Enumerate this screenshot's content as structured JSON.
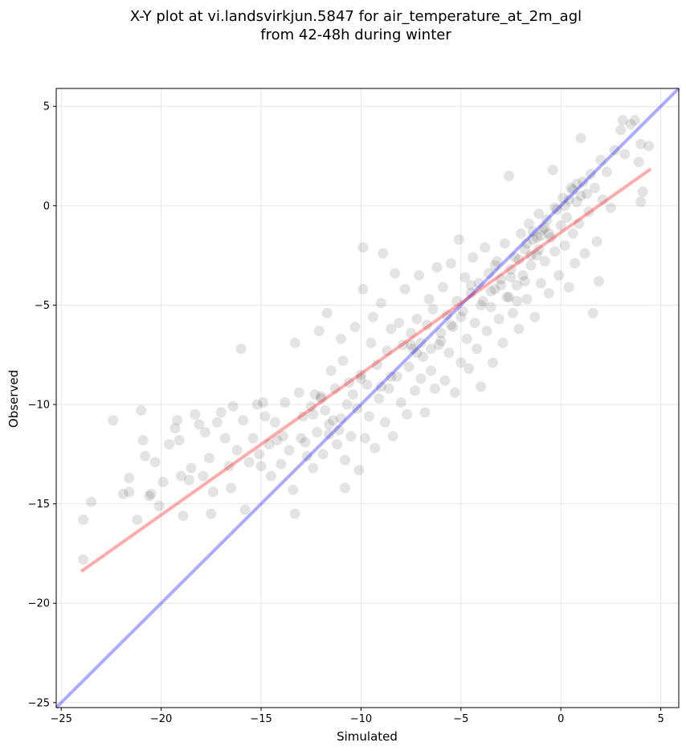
{
  "chart_data": {
    "type": "scatter",
    "title_line1": "X-Y plot at vi.landsvirkjun.5847 for air_temperature_at_2m_agl",
    "title_line2": "from 42-48h during winter",
    "xlabel": "Simulated",
    "ylabel": "Observed",
    "xlim": [
      -25.25,
      5.9
    ],
    "ylim": [
      -25.25,
      5.9
    ],
    "xticks": [
      -25,
      -20,
      -15,
      -10,
      -5,
      0,
      5
    ],
    "yticks": [
      -25,
      -20,
      -15,
      -10,
      -5,
      0,
      5
    ],
    "xtick_labels": [
      "−25",
      "−20",
      "−15",
      "−10",
      "−5",
      "0",
      "5"
    ],
    "ytick_labels": [
      "−25",
      "−20",
      "−15",
      "−10",
      "−5",
      "0",
      "5"
    ],
    "grid": true,
    "point_color": "#000000",
    "point_alpha": 0.11,
    "identity_line": {
      "x": [
        -25.25,
        5.9
      ],
      "y": [
        -25.25,
        5.9
      ],
      "color": "#0000ff"
    },
    "regression_line": {
      "x": [
        -24,
        4.5
      ],
      "y": [
        -18.4,
        1.85
      ],
      "color": "#ff0000"
    },
    "points": [
      [
        -23.9,
        -15.8
      ],
      [
        -23.9,
        -17.8
      ],
      [
        -23.5,
        -14.9
      ],
      [
        -22.4,
        -10.8
      ],
      [
        -21.9,
        -14.5
      ],
      [
        -21.6,
        -13.7
      ],
      [
        -21.6,
        -14.4
      ],
      [
        -21.2,
        -15.8
      ],
      [
        -21.0,
        -10.3
      ],
      [
        -20.9,
        -11.8
      ],
      [
        -20.8,
        -12.6
      ],
      [
        -20.6,
        -14.6
      ],
      [
        -20.5,
        -14.5
      ],
      [
        -20.3,
        -12.9
      ],
      [
        -20.1,
        -15.1
      ],
      [
        -19.9,
        -13.9
      ],
      [
        -19.6,
        -12.0
      ],
      [
        -19.3,
        -11.2
      ],
      [
        -19.2,
        -10.8
      ],
      [
        -19.1,
        -11.8
      ],
      [
        -19.0,
        -13.6
      ],
      [
        -18.9,
        -15.6
      ],
      [
        -18.6,
        -13.8
      ],
      [
        -18.5,
        -13.2
      ],
      [
        -18.3,
        -10.5
      ],
      [
        -18.1,
        -11.0
      ],
      [
        -17.9,
        -13.6
      ],
      [
        -17.8,
        -11.4
      ],
      [
        -17.6,
        -12.7
      ],
      [
        -17.5,
        -15.5
      ],
      [
        -17.4,
        -14.4
      ],
      [
        -17.2,
        -10.9
      ],
      [
        -17.0,
        -10.4
      ],
      [
        -16.8,
        -11.7
      ],
      [
        -16.6,
        -13.1
      ],
      [
        -16.5,
        -14.2
      ],
      [
        -16.4,
        -10.1
      ],
      [
        -16.2,
        -12.3
      ],
      [
        -16.0,
        -7.2
      ],
      [
        -15.9,
        -10.8
      ],
      [
        -15.8,
        -15.3
      ],
      [
        -15.6,
        -12.9
      ],
      [
        -15.4,
        -11.7
      ],
      [
        -15.2,
        -10.0
      ],
      [
        -15.1,
        -12.5
      ],
      [
        -15.0,
        -13.1
      ],
      [
        -14.9,
        -9.9
      ],
      [
        -14.8,
        -10.6
      ],
      [
        -14.6,
        -12.0
      ],
      [
        -14.5,
        -13.6
      ],
      [
        -14.3,
        -10.9
      ],
      [
        -14.2,
        -11.8
      ],
      [
        -14.0,
        -13.0
      ],
      [
        -13.9,
        -11.6
      ],
      [
        -13.8,
        -9.9
      ],
      [
        -13.6,
        -12.3
      ],
      [
        -13.4,
        -14.3
      ],
      [
        -13.3,
        -15.5
      ],
      [
        -13.3,
        -6.9
      ],
      [
        -13.1,
        -9.4
      ],
      [
        -13.0,
        -11.7
      ],
      [
        -12.9,
        -10.6
      ],
      [
        -12.8,
        -11.9
      ],
      [
        -12.7,
        -12.6
      ],
      [
        -12.5,
        -10.1
      ],
      [
        -12.4,
        -13.2
      ],
      [
        -12.3,
        -9.5
      ],
      [
        -12.2,
        -11.4
      ],
      [
        -12.1,
        -6.3
      ],
      [
        -12.0,
        -9.7
      ],
      [
        -11.9,
        -12.5
      ],
      [
        -11.8,
        -10.3
      ],
      [
        -11.7,
        -5.4
      ],
      [
        -11.6,
        -11.0
      ],
      [
        -11.5,
        -8.3
      ],
      [
        -11.4,
        -10.8
      ],
      [
        -11.3,
        -9.2
      ],
      [
        -11.2,
        -12.0
      ],
      [
        -11.1,
        -11.3
      ],
      [
        -11.0,
        -6.7
      ],
      [
        -10.9,
        -7.8
      ],
      [
        -10.8,
        -12.8
      ],
      [
        -10.8,
        -14.2
      ],
      [
        -10.7,
        -10.0
      ],
      [
        -10.6,
        -8.9
      ],
      [
        -10.5,
        -11.6
      ],
      [
        -10.4,
        -9.5
      ],
      [
        -10.3,
        -6.1
      ],
      [
        -10.2,
        -10.2
      ],
      [
        -10.1,
        -13.3
      ],
      [
        -10.0,
        -8.5
      ],
      [
        -9.9,
        -4.2
      ],
      [
        -9.9,
        -2.1
      ],
      [
        -9.8,
        -11.7
      ],
      [
        -9.7,
        -9.0
      ],
      [
        -9.6,
        -10.6
      ],
      [
        -9.5,
        -6.9
      ],
      [
        -9.4,
        -5.6
      ],
      [
        -9.3,
        -12.2
      ],
      [
        -9.2,
        -8.0
      ],
      [
        -9.1,
        -9.7
      ],
      [
        -9.0,
        -4.9
      ],
      [
        -8.9,
        -2.4
      ],
      [
        -8.8,
        -10.9
      ],
      [
        -8.7,
        -7.3
      ],
      [
        -8.6,
        -9.2
      ],
      [
        -8.5,
        -6.2
      ],
      [
        -8.4,
        -11.6
      ],
      [
        -8.3,
        -3.4
      ],
      [
        -8.2,
        -8.6
      ],
      [
        -8.1,
        -5.9
      ],
      [
        -8.0,
        -9.9
      ],
      [
        -7.9,
        -7.0
      ],
      [
        -7.8,
        -4.2
      ],
      [
        -7.7,
        -10.5
      ],
      [
        -7.6,
        -8.1
      ],
      [
        -7.5,
        -6.4
      ],
      [
        -7.4,
        -7.2
      ],
      [
        -7.3,
        -9.3
      ],
      [
        -7.2,
        -5.7
      ],
      [
        -7.1,
        -3.5
      ],
      [
        -7.0,
        -8.7
      ],
      [
        -6.9,
        -7.6
      ],
      [
        -6.8,
        -10.4
      ],
      [
        -6.7,
        -6.0
      ],
      [
        -6.6,
        -4.7
      ],
      [
        -6.5,
        -8.3
      ],
      [
        -6.4,
        -5.2
      ],
      [
        -6.3,
        -9.2
      ],
      [
        -6.2,
        -3.1
      ],
      [
        -6.1,
        -7.0
      ],
      [
        -6.0,
        -6.4
      ],
      [
        -5.9,
        -4.1
      ],
      [
        -5.8,
        -8.8
      ],
      [
        -5.7,
        -5.5
      ],
      [
        -5.6,
        -7.4
      ],
      [
        -5.5,
        -2.9
      ],
      [
        -5.4,
        -6.1
      ],
      [
        -5.3,
        -9.4
      ],
      [
        -5.2,
        -4.8
      ],
      [
        -5.1,
        -1.7
      ],
      [
        -5.0,
        -7.9
      ],
      [
        -4.9,
        -5.3
      ],
      [
        -4.8,
        -3.6
      ],
      [
        -4.7,
        -6.7
      ],
      [
        -4.6,
        -8.2
      ],
      [
        -4.5,
        -4.4
      ],
      [
        -4.4,
        -2.6
      ],
      [
        -4.3,
        -5.9
      ],
      [
        -4.2,
        -7.2
      ],
      [
        -4.1,
        -3.9
      ],
      [
        -4.0,
        -9.1
      ],
      [
        -3.9,
        -4.8
      ],
      [
        -3.8,
        -2.1
      ],
      [
        -3.7,
        -6.3
      ],
      [
        -3.6,
        -3.4
      ],
      [
        -3.5,
        -5.1
      ],
      [
        -3.4,
        -7.9
      ],
      [
        -3.3,
        -4.2
      ],
      [
        -3.2,
        -2.8
      ],
      [
        -3.1,
        -5.7
      ],
      [
        -3.0,
        -3.7
      ],
      [
        -2.9,
        -6.9
      ],
      [
        -2.8,
        -1.9
      ],
      [
        -2.7,
        -4.6
      ],
      [
        -2.6,
        1.5
      ],
      [
        -2.5,
        -3.2
      ],
      [
        -2.4,
        -5.4
      ],
      [
        -2.3,
        -2.6
      ],
      [
        -2.2,
        -4.0
      ],
      [
        -2.1,
        -6.2
      ],
      [
        -2.0,
        -1.4
      ],
      [
        -1.9,
        -3.5
      ],
      [
        -1.8,
        -2.2
      ],
      [
        -1.7,
        -4.7
      ],
      [
        -1.6,
        -0.9
      ],
      [
        -1.5,
        -3.0
      ],
      [
        -1.4,
        -1.7
      ],
      [
        -1.3,
        -5.6
      ],
      [
        -1.2,
        -2.5
      ],
      [
        -1.1,
        -0.4
      ],
      [
        -1.0,
        -3.9
      ],
      [
        -0.9,
        -1.2
      ],
      [
        -0.8,
        -2.8
      ],
      [
        -0.7,
        -0.7
      ],
      [
        -0.6,
        -4.4
      ],
      [
        -0.5,
        -1.6
      ],
      [
        -0.4,
        1.8
      ],
      [
        -0.3,
        -2.3
      ],
      [
        -0.2,
        -0.2
      ],
      [
        -0.1,
        -3.5
      ],
      [
        0.0,
        -1.0
      ],
      [
        0.1,
        0.4
      ],
      [
        0.2,
        -2.0
      ],
      [
        0.3,
        -0.6
      ],
      [
        0.4,
        -4.1
      ],
      [
        0.5,
        0.9
      ],
      [
        0.6,
        -1.4
      ],
      [
        0.7,
        -2.9
      ],
      [
        0.8,
        0.2
      ],
      [
        0.9,
        -0.9
      ],
      [
        1.0,
        3.4
      ],
      [
        1.1,
        1.2
      ],
      [
        1.2,
        -2.4
      ],
      [
        1.3,
        0.6
      ],
      [
        1.4,
        -0.3
      ],
      [
        1.5,
        1.6
      ],
      [
        1.6,
        -5.4
      ],
      [
        1.7,
        0.9
      ],
      [
        1.8,
        -1.8
      ],
      [
        1.9,
        -3.8
      ],
      [
        2.0,
        2.3
      ],
      [
        2.1,
        0.3
      ],
      [
        2.3,
        1.7
      ],
      [
        2.5,
        -0.1
      ],
      [
        2.7,
        2.8
      ],
      [
        3.0,
        3.8
      ],
      [
        3.1,
        4.3
      ],
      [
        3.2,
        2.6
      ],
      [
        3.5,
        4.1
      ],
      [
        3.7,
        4.3
      ],
      [
        3.9,
        2.2
      ],
      [
        4.0,
        3.1
      ],
      [
        4.0,
        0.2
      ],
      [
        4.1,
        0.7
      ],
      [
        4.4,
        3.0
      ],
      [
        -1.4,
        -1.3
      ],
      [
        -1.0,
        -1.5
      ],
      [
        -0.8,
        -1.1
      ],
      [
        -1.7,
        -1.9
      ],
      [
        -2.1,
        -2.7
      ],
      [
        -1.2,
        -1.6
      ],
      [
        0.6,
        0.8
      ],
      [
        0.8,
        1.1
      ],
      [
        1.0,
        0.5
      ],
      [
        0.4,
        0.3
      ],
      [
        -0.3,
        -0.1
      ],
      [
        -2.5,
        -3.6
      ],
      [
        -3.0,
        -4.0
      ],
      [
        -3.5,
        -4.3
      ],
      [
        -7.5,
        -7.0
      ],
      [
        -7.2,
        -7.4
      ],
      [
        -7.0,
        -6.9
      ],
      [
        -8.5,
        -8.6
      ],
      [
        -9.0,
        -9.1
      ],
      [
        -10.0,
        -8.7
      ],
      [
        -11.0,
        -10.7
      ],
      [
        -12.0,
        -9.6
      ],
      [
        -12.4,
        -10.5
      ],
      [
        -11.6,
        -11.5
      ],
      [
        -2.2,
        -4.8
      ],
      [
        -2.6,
        -4.6
      ],
      [
        -1.8,
        -3.8
      ],
      [
        -4.0,
        -5.0
      ],
      [
        -4.5,
        -4.0
      ],
      [
        -5.0,
        -5.6
      ],
      [
        -5.5,
        -6.0
      ],
      [
        -6.0,
        -6.8
      ],
      [
        -6.5,
        -7.2
      ],
      [
        -3.3,
        -3.0
      ],
      [
        -1.5,
        -2.5
      ],
      [
        -1.1,
        -2.2
      ],
      [
        -0.6,
        -1.4
      ],
      [
        0.2,
        0.0
      ]
    ]
  }
}
